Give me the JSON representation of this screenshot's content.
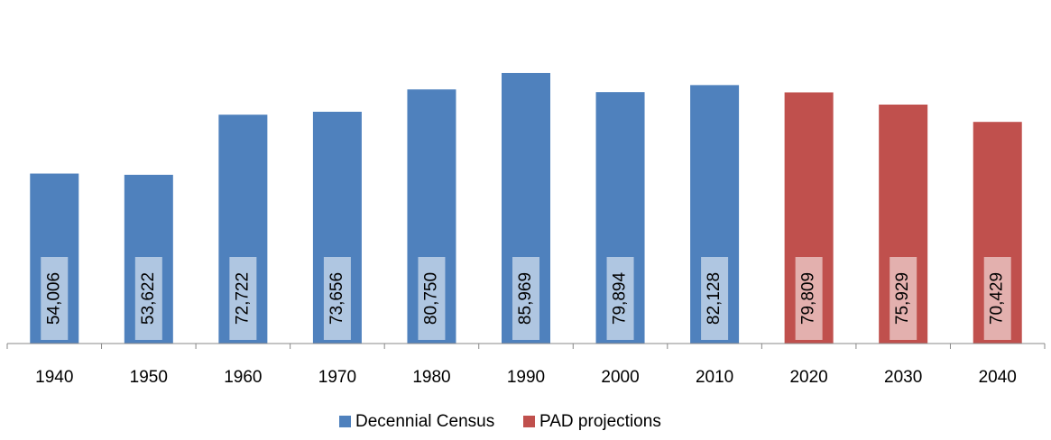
{
  "chart_data": {
    "type": "bar",
    "categories": [
      "1940",
      "1950",
      "1960",
      "1970",
      "1980",
      "1990",
      "2000",
      "2010",
      "2020",
      "2030",
      "2040"
    ],
    "series": [
      {
        "name": "Decennial Census",
        "color": "#4f81bd",
        "values": [
          54006,
          53622,
          72722,
          73656,
          80750,
          85969,
          79894,
          82128,
          null,
          null,
          null
        ],
        "value_labels": [
          "54,006",
          "53,622",
          "72,722",
          "73,656",
          "80,750",
          "85,969",
          "79,894",
          "82,128",
          null,
          null,
          null
        ]
      },
      {
        "name": "PAD projections",
        "color": "#c0504d",
        "values": [
          null,
          null,
          null,
          null,
          null,
          null,
          null,
          null,
          79809,
          75929,
          70429
        ],
        "value_labels": [
          null,
          null,
          null,
          null,
          null,
          null,
          null,
          null,
          "79,809",
          "75,929",
          "70,429"
        ]
      }
    ],
    "ylim": [
      0,
      100000
    ]
  }
}
